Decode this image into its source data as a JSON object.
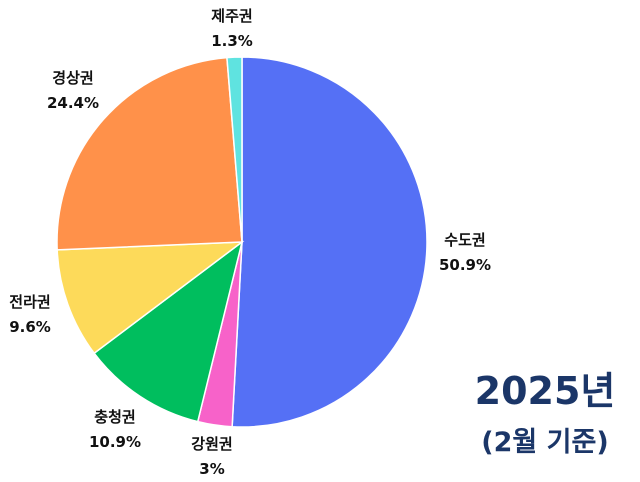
{
  "chart_data": {
    "type": "pie",
    "title": "2025년",
    "subtitle": "(2월 기준)",
    "start_angle": "12 o'clock",
    "direction": "clockwise",
    "slices": [
      {
        "label": "수도권",
        "value": 50.9,
        "display": "50.9%",
        "color": "#5570F5"
      },
      {
        "label": "강원권",
        "value": 3,
        "display": "3%",
        "color": "#F762C9"
      },
      {
        "label": "충청권",
        "value": 10.9,
        "display": "10.9%",
        "color": "#00BE5E"
      },
      {
        "label": "전라권",
        "value": 9.6,
        "display": "9.6%",
        "color": "#FDDA5A"
      },
      {
        "label": "경상권",
        "value": 24.4,
        "display": "24.4%",
        "color": "#FF914A"
      },
      {
        "label": "제주권",
        "value": 1.3,
        "display": "1.3%",
        "color": "#5FE3E0"
      }
    ],
    "title_color": "#1B3668"
  }
}
